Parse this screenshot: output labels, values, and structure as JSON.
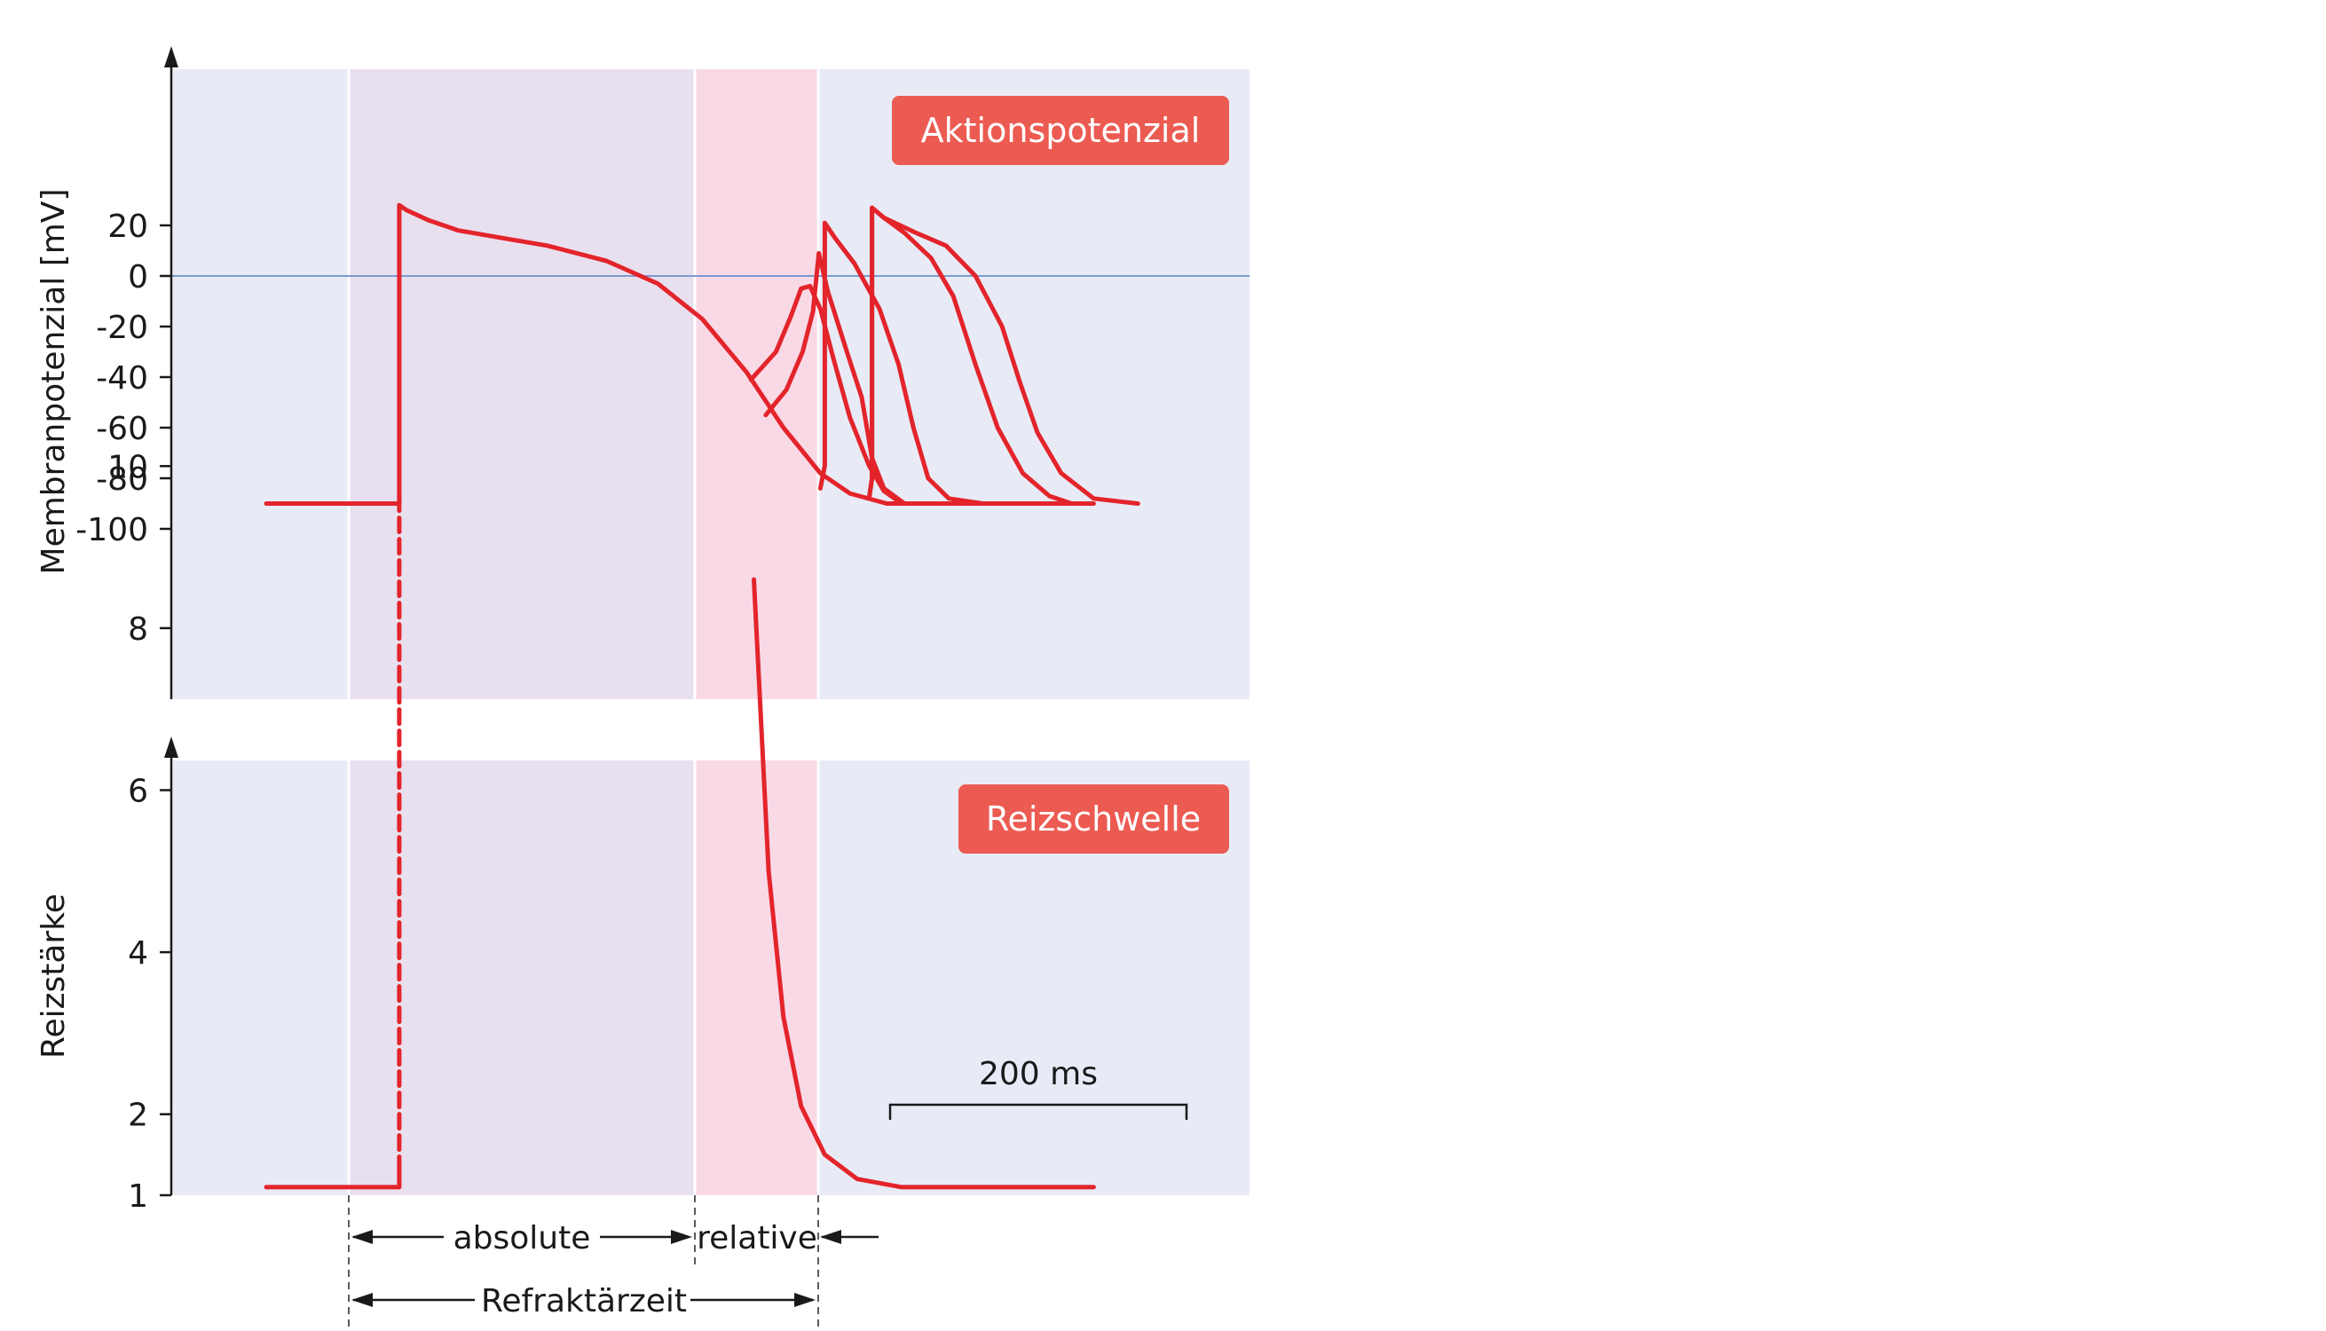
{
  "chart_data": [
    {
      "type": "line",
      "label": "Aktionspotenzial",
      "ylabel": "Membranpotenzial [mV]",
      "yticks": [
        20,
        0,
        -20,
        -40,
        -60,
        -80,
        -100
      ],
      "ylim": [
        -100,
        33
      ],
      "zero_line": true,
      "time_unit_ms_per_200": "200 ms",
      "series": [
        {
          "points": [
            [
              0,
              -90
            ],
            [
              90,
              -90
            ],
            [
              90,
              28
            ],
            [
              95,
              26
            ],
            [
              110,
              22
            ],
            [
              130,
              18
            ],
            [
              160,
              15
            ],
            [
              190,
              12
            ],
            [
              230,
              6
            ],
            [
              265,
              -3
            ],
            [
              295,
              -17
            ],
            [
              325,
              -38
            ],
            [
              350,
              -60
            ],
            [
              375,
              -78
            ],
            [
              395,
              -86
            ],
            [
              420,
              -90
            ],
            [
              560,
              -90
            ]
          ]
        },
        {
          "points": [
            [
              328,
              -41
            ],
            [
              345,
              -30
            ],
            [
              355,
              -16
            ],
            [
              362,
              -5
            ],
            [
              368,
              -4
            ],
            [
              375,
              -13
            ],
            [
              384,
              -33
            ],
            [
              395,
              -56
            ],
            [
              408,
              -75
            ],
            [
              418,
              -85
            ],
            [
              430,
              -90
            ]
          ]
        },
        {
          "points": [
            [
              338,
              -55
            ],
            [
              352,
              -45
            ],
            [
              363,
              -30
            ],
            [
              370,
              -14
            ],
            [
              374,
              9
            ],
            [
              380,
              -6
            ],
            [
              393,
              -30
            ],
            [
              403,
              -48
            ],
            [
              410,
              -72
            ],
            [
              418,
              -84
            ],
            [
              432,
              -90
            ]
          ]
        },
        {
          "points": [
            [
              375,
              -84
            ],
            [
              378,
              -75
            ],
            [
              378,
              21
            ],
            [
              385,
              15
            ],
            [
              398,
              5
            ],
            [
              415,
              -13
            ],
            [
              428,
              -35
            ],
            [
              438,
              -60
            ],
            [
              448,
              -80
            ],
            [
              462,
              -88
            ],
            [
              485,
              -90
            ]
          ]
        },
        {
          "points": [
            [
              408,
              -88
            ],
            [
              410,
              -80
            ],
            [
              410,
              27
            ],
            [
              418,
              23
            ],
            [
              432,
              17
            ],
            [
              450,
              7
            ],
            [
              465,
              -8
            ],
            [
              480,
              -35
            ],
            [
              495,
              -60
            ],
            [
              512,
              -78
            ],
            [
              530,
              -87
            ],
            [
              545,
              -90
            ]
          ]
        },
        {
          "points": [
            [
              408,
              -88
            ],
            [
              410,
              -80
            ],
            [
              410,
              27
            ],
            [
              418,
              23
            ],
            [
              440,
              17
            ],
            [
              460,
              12
            ],
            [
              480,
              0
            ],
            [
              498,
              -20
            ],
            [
              510,
              -42
            ],
            [
              522,
              -62
            ],
            [
              538,
              -78
            ],
            [
              560,
              -88
            ],
            [
              590,
              -90
            ]
          ]
        }
      ]
    },
    {
      "type": "line",
      "label": "Reizschwelle",
      "ylabel": "Reizstärke",
      "yticks": [
        10,
        8,
        6,
        4,
        2,
        1
      ],
      "scale_bar": "200 ms",
      "series": [
        {
          "name": "",
          "points": [
            [
              0,
              1.1
            ],
            [
              90,
              1.1
            ],
            [
              90,
              1.3
            ]
          ]
        },
        {
          "name": "dashed",
          "points": [
            [
              90,
              1.3
            ],
            [
              90,
              9.7
            ]
          ]
        },
        {
          "name": "",
          "points": [
            [
              330,
              8.6
            ],
            [
              340,
              5.0
            ],
            [
              350,
              3.2
            ],
            [
              362,
              2.1
            ],
            [
              378,
              1.5
            ],
            [
              400,
              1.2
            ],
            [
              430,
              1.1
            ],
            [
              560,
              1.1
            ]
          ]
        }
      ]
    }
  ],
  "annotations": {
    "absolute": "absolute",
    "relative": "relative",
    "refractory": "Refraktärzeit"
  },
  "colors": {
    "trace": "#e3242b",
    "badge": "#ec5b52",
    "background": "#e8ebf6",
    "absolute_zone": "#e9e0ef",
    "relative_zone": "#f9d9e6"
  }
}
